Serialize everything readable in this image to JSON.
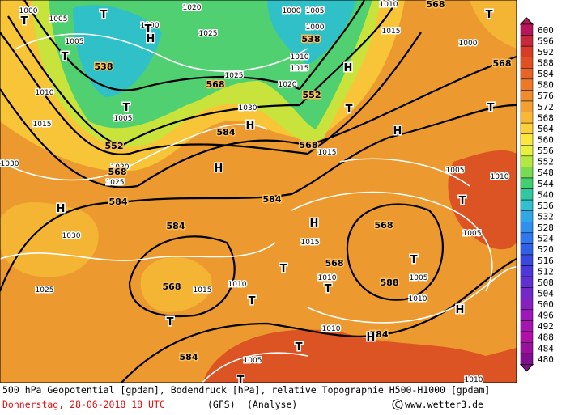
{
  "map": {
    "height_labels": [
      538,
      538,
      552,
      552,
      568,
      568,
      568,
      584,
      584,
      584,
      584,
      568,
      568,
      568,
      588,
      584,
      584,
      568,
      568
    ],
    "pressure_labels": [
      1000,
      1005,
      1005,
      1000,
      1020,
      1025,
      1000,
      1005,
      1000,
      1010,
      1015,
      1020,
      1025,
      1030,
      1010,
      1015,
      1005,
      1020,
      1025,
      1030,
      1030,
      1025,
      1015,
      1010,
      1015,
      1015,
      1010,
      1005,
      1010,
      1010,
      1005,
      1010,
      1005,
      1000,
      1015,
      1005,
      1010,
      1010
    ],
    "highs": [
      "H",
      "H",
      "H",
      "H",
      "H",
      "H",
      "H",
      "H",
      "H"
    ],
    "lows": [
      "T",
      "T",
      "T",
      "T",
      "T",
      "T",
      "T",
      "T",
      "T",
      "T",
      "T",
      "T",
      "T",
      "T",
      "T",
      "T"
    ]
  },
  "legend": {
    "labels": [
      600,
      596,
      592,
      588,
      584,
      580,
      576,
      572,
      568,
      564,
      560,
      556,
      552,
      548,
      544,
      540,
      536,
      532,
      528,
      524,
      520,
      516,
      512,
      508,
      504,
      500,
      496,
      492,
      488,
      484,
      480
    ],
    "colors": [
      "#b8145a",
      "#c8283c",
      "#d83c28",
      "#e05020",
      "#e86424",
      "#ec7828",
      "#f08c2c",
      "#f4a030",
      "#f8b834",
      "#fcd038",
      "#fce83c",
      "#e8f03c",
      "#b4e83c",
      "#78dc50",
      "#40d070",
      "#30c8a0",
      "#30c0d0",
      "#30a8e8",
      "#3090f0",
      "#3078f0",
      "#3060e8",
      "#3848e0",
      "#4c38d8",
      "#6030d0",
      "#7428c8",
      "#8820c0",
      "#9c18b8",
      "#a814b0",
      "#b010a8",
      "#9c10a0",
      "#800c90"
    ]
  },
  "footer": {
    "line1": "500 hPa Geopotential [gpdam], Bodendruck [hPa], relative Topographie H500-H1000 [gpdam]",
    "date": "Donnerstag, 28-06-2018  18 UTC",
    "model": "(GFS)",
    "run": "(Analyse)",
    "site": "www.wetter3.de"
  }
}
